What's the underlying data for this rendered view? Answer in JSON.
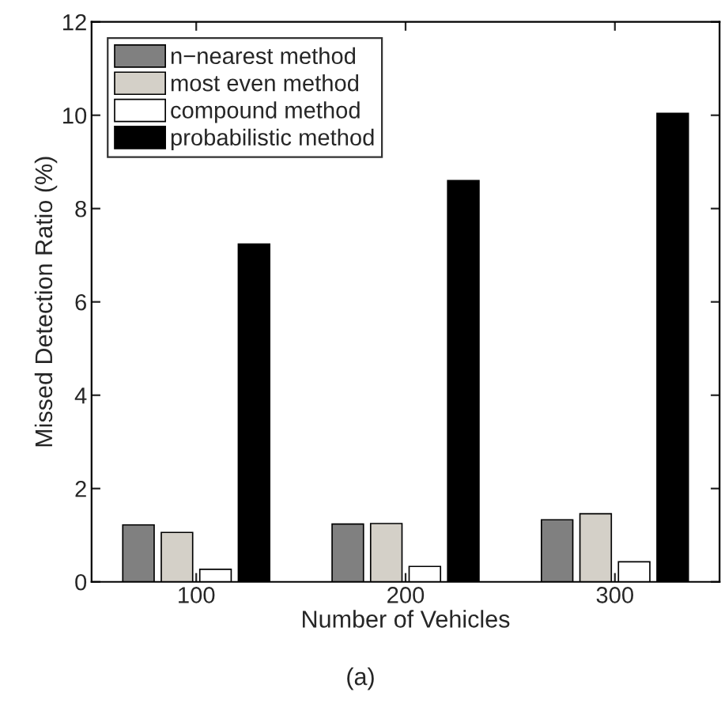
{
  "chart_data": {
    "type": "bar",
    "xlabel": "Number of Vehicles",
    "ylabel": "Missed Detection Ratio (%)",
    "categories": [
      "100",
      "200",
      "300"
    ],
    "series": [
      {
        "name": "n−nearest method",
        "color": "#808080",
        "values": [
          1.22,
          1.24,
          1.33
        ]
      },
      {
        "name": "most even method",
        "color": "#d4d0c8",
        "values": [
          1.06,
          1.25,
          1.46
        ]
      },
      {
        "name": "compound method",
        "color": "#ffffff",
        "values": [
          0.27,
          0.33,
          0.43
        ]
      },
      {
        "name": "probabilistic method",
        "color": "#000000",
        "values": [
          7.24,
          8.6,
          10.04
        ]
      }
    ],
    "ylim": [
      0,
      12
    ],
    "yticks": [
      0,
      2,
      4,
      6,
      8,
      10,
      12
    ],
    "grid": false,
    "legend": "top left",
    "annotations": [
      "(a)"
    ]
  }
}
